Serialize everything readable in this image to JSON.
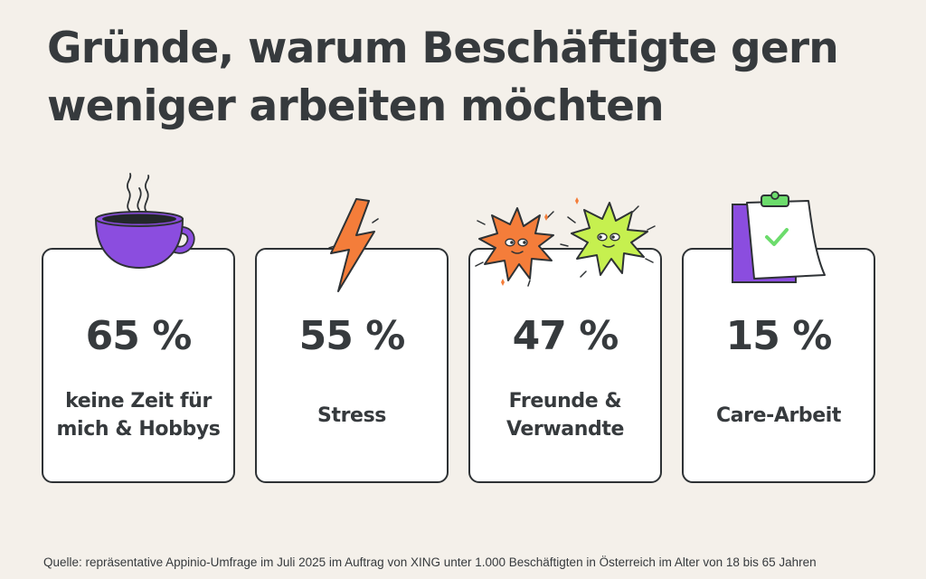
{
  "title": {
    "line1": "Gründe, warum Beschäftigte gern",
    "line2": "weniger arbeiten möchten"
  },
  "chart_data": {
    "type": "table",
    "title": "Gründe, warum Beschäftigte gern weniger arbeiten möchten",
    "unit": "%",
    "categories": [
      "keine Zeit für mich & Hobbys",
      "Stress",
      "Freunde & Verwandte",
      "Care-Arbeit"
    ],
    "values": [
      65,
      55,
      47,
      15
    ]
  },
  "cards": [
    {
      "percent": "65 %",
      "label_line1": "keine Zeit für",
      "label_line2": "mich & Hobbys",
      "icon": "coffee-cup-icon"
    },
    {
      "percent": "55 %",
      "label_line1": "Stress",
      "label_line2": "",
      "icon": "lightning-bolt-icon"
    },
    {
      "percent": "47 %",
      "label_line1": "Freunde &",
      "label_line2": "Verwandte",
      "icon": "friends-stars-icon"
    },
    {
      "percent": "15 %",
      "label_line1": "Care-Arbeit",
      "label_line2": "",
      "icon": "clipboard-check-icon"
    }
  ],
  "colors": {
    "background": "#f4f0ea",
    "text": "#363a3d",
    "purple": "#8b4ddf",
    "orange": "#f47d3a",
    "green": "#c6f04f"
  },
  "source": "Quelle: repräsentative Appinio-Umfrage im Juli 2025 im Auftrag von XING unter 1.000 Beschäftigten in Österreich im Alter von 18 bis 65 Jahren"
}
